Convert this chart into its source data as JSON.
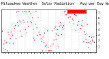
{
  "title": "Milwaukee Weather  Solar Radiation   Avg per Day W/m2/minute",
  "title_fontsize": 3.8,
  "bg_color": "#ffffff",
  "dot_color_main": "#ff0000",
  "dot_color_secondary": "#000000",
  "legend_box_color": "#ff0000",
  "grid_color": "#aaaaaa",
  "ylim": [
    0,
    7.5
  ],
  "yticks": [
    1,
    2,
    3,
    4,
    5,
    6,
    7
  ],
  "num_points": 130,
  "seed": 7,
  "num_vlines": 11
}
